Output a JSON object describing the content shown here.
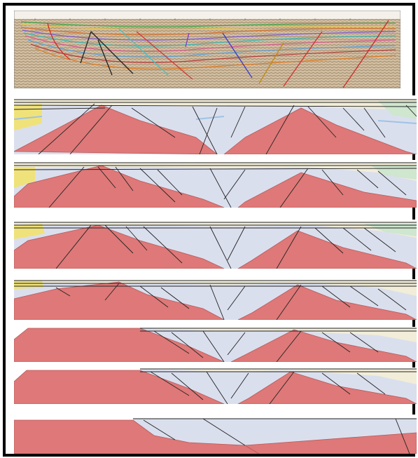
{
  "figure": {
    "top_section": {
      "label": "seismic-interpretation-section",
      "depth_tick_labels": [
        "",
        "",
        "",
        "",
        "",
        "",
        "",
        "",
        "",
        "",
        "",
        ""
      ],
      "trace_labels": [
        "",
        "",
        "",
        "",
        "",
        "",
        "",
        "",
        "",
        "",
        "",
        ""
      ]
    },
    "panels": [
      {
        "label": "present-day-section"
      },
      {
        "label": "restoration-step-1"
      },
      {
        "label": "restoration-step-2"
      },
      {
        "label": "restoration-step-3"
      },
      {
        "label": "restoration-step-4"
      },
      {
        "label": "restoration-step-5"
      },
      {
        "label": "restoration-step-6"
      }
    ],
    "colors": {
      "basement": "#df7878",
      "basement_edge": "#b65a5a",
      "lower_fill": "#dadfee",
      "upper_fill": "#f1edd8",
      "yellow": "#f0e27a",
      "green": "#cfe6cf",
      "blue": "#9ec3e3",
      "fault_line": "#222222",
      "seismic_bg": "#c8b49a"
    }
  }
}
